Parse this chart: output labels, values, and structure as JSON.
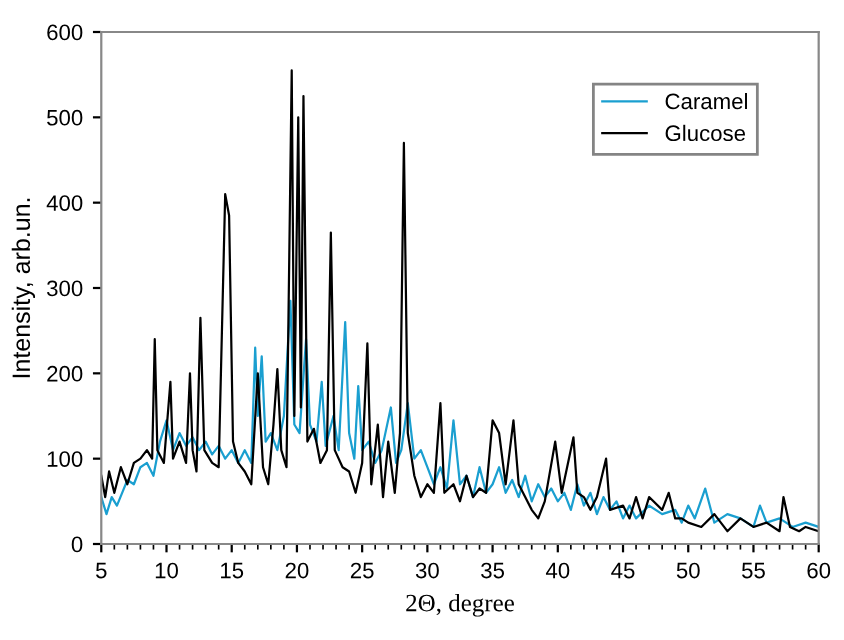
{
  "chart_data": {
    "type": "line",
    "xlabel": "2Θ, degree",
    "ylabel": "Intensity, arb.un.",
    "xlim": [
      5,
      60
    ],
    "ylim": [
      0,
      600
    ],
    "xticks": [
      5,
      10,
      15,
      20,
      25,
      30,
      35,
      40,
      45,
      50,
      55,
      60
    ],
    "yticks": [
      0,
      100,
      200,
      300,
      400,
      500,
      600
    ],
    "grid": false,
    "legend": "top right",
    "marker": "none",
    "line_style": "solid",
    "series": [
      {
        "name": "Caramel",
        "color": "#1a9fd0",
        "x": [
          5,
          5.4,
          5.8,
          6.2,
          6.6,
          7,
          7.5,
          8,
          8.5,
          9,
          9.5,
          10,
          10.5,
          11,
          11.5,
          12,
          12.5,
          13,
          13.5,
          14,
          14.5,
          15,
          15.5,
          16,
          16.5,
          16.8,
          17,
          17.3,
          17.6,
          18,
          18.5,
          19,
          19.5,
          19.8,
          20.2,
          20.7,
          21,
          21.5,
          21.9,
          22.2,
          22.8,
          23.2,
          23.7,
          24,
          24.4,
          24.7,
          25,
          25.5,
          26,
          26.5,
          27.2,
          27.6,
          28,
          28.5,
          29,
          29.5,
          30,
          30.5,
          31,
          31.5,
          32,
          32.5,
          33,
          33.5,
          34,
          34.5,
          35,
          35.5,
          36,
          36.5,
          37,
          37.5,
          38,
          38.5,
          39,
          39.5,
          40,
          40.5,
          41,
          41.5,
          42,
          42.5,
          43,
          43.5,
          44,
          44.5,
          45,
          45.5,
          46,
          47,
          48,
          49,
          49.5,
          50,
          50.5,
          51.3,
          52,
          53,
          54,
          55,
          55.5,
          56,
          57,
          58,
          59,
          60
        ],
        "values": [
          55,
          35,
          55,
          45,
          60,
          75,
          70,
          90,
          95,
          80,
          120,
          145,
          110,
          130,
          115,
          125,
          110,
          120,
          105,
          115,
          100,
          110,
          95,
          110,
          95,
          230,
          150,
          220,
          120,
          130,
          110,
          150,
          285,
          140,
          130,
          240,
          140,
          120,
          190,
          115,
          150,
          110,
          260,
          130,
          100,
          185,
          110,
          120,
          95,
          110,
          160,
          95,
          110,
          165,
          100,
          110,
          90,
          70,
          90,
          65,
          145,
          70,
          80,
          55,
          90,
          60,
          70,
          90,
          60,
          75,
          55,
          80,
          50,
          70,
          55,
          65,
          50,
          60,
          40,
          70,
          45,
          60,
          35,
          55,
          40,
          50,
          30,
          45,
          30,
          45,
          35,
          40,
          25,
          45,
          30,
          65,
          25,
          35,
          30,
          20,
          45,
          25,
          30,
          20,
          25,
          20
        ]
      },
      {
        "name": "Glucose",
        "color": "#000000",
        "x": [
          5,
          5.3,
          5.6,
          6,
          6.5,
          7,
          7.5,
          8,
          8.5,
          8.9,
          9.1,
          9.3,
          9.8,
          10.3,
          10.5,
          11,
          11.5,
          11.8,
          12,
          12.3,
          12.6,
          12.9,
          13.5,
          14,
          14.5,
          14.8,
          15.1,
          15.5,
          16,
          16.5,
          17,
          17.4,
          17.8,
          18.2,
          18.5,
          18.8,
          19.2,
          19.6,
          19.8,
          20.1,
          20.3,
          20.5,
          20.8,
          21.3,
          21.8,
          22.3,
          22.6,
          22.9,
          23.5,
          24,
          24.5,
          25,
          25.4,
          25.7,
          26.2,
          26.6,
          27,
          27.5,
          27.9,
          28.2,
          28.5,
          29,
          29.5,
          30,
          30.5,
          31,
          31.3,
          32,
          32.5,
          33,
          33.5,
          34,
          34.5,
          35,
          35.5,
          36,
          36.6,
          37,
          37.5,
          38,
          38.5,
          39,
          39.8,
          40.3,
          41.2,
          41.5,
          42,
          42.5,
          43,
          43.7,
          44,
          45,
          45.5,
          46,
          46.5,
          47,
          48,
          48.5,
          49,
          49.5,
          50,
          51,
          52,
          53,
          54,
          55,
          56,
          57,
          57.3,
          57.8,
          58.5,
          59,
          60
        ],
        "values": [
          80,
          55,
          85,
          60,
          90,
          70,
          95,
          100,
          110,
          100,
          240,
          110,
          95,
          190,
          100,
          120,
          95,
          200,
          110,
          85,
          265,
          110,
          95,
          90,
          410,
          385,
          120,
          95,
          85,
          70,
          200,
          90,
          70,
          140,
          205,
          110,
          90,
          555,
          150,
          500,
          160,
          525,
          120,
          135,
          95,
          110,
          365,
          110,
          90,
          85,
          60,
          95,
          235,
          70,
          140,
          55,
          120,
          60,
          130,
          470,
          130,
          80,
          55,
          70,
          60,
          165,
          60,
          70,
          50,
          80,
          55,
          65,
          60,
          145,
          130,
          70,
          145,
          70,
          55,
          40,
          30,
          50,
          120,
          60,
          125,
          60,
          55,
          40,
          55,
          100,
          40,
          45,
          30,
          55,
          30,
          55,
          40,
          60,
          30,
          30,
          25,
          20,
          35,
          15,
          30,
          20,
          25,
          15,
          55,
          20,
          15,
          20,
          15
        ]
      }
    ]
  }
}
